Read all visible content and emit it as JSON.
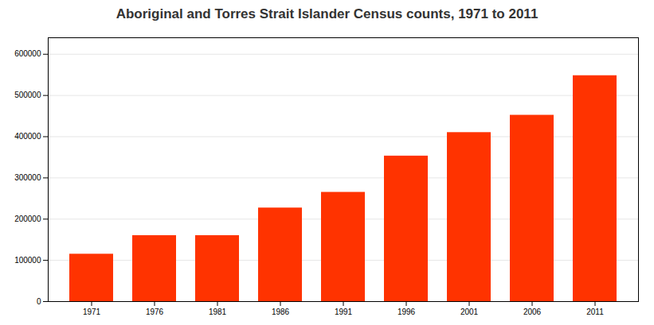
{
  "chart_data": {
    "type": "bar",
    "title": "Aboriginal and Torres Strait Islander Census counts, 1971 to 2011",
    "categories": [
      "1971",
      "1976",
      "1981",
      "1986",
      "1991",
      "1996",
      "2001",
      "2006",
      "2011"
    ],
    "values": [
      115000,
      160000,
      160000,
      227000,
      265000,
      353000,
      410000,
      452000,
      548000
    ],
    "color": "#FF3300",
    "ylim": [
      0,
      640000
    ],
    "yticks": [
      0,
      100000,
      200000,
      300000,
      400000,
      500000,
      600000
    ],
    "grid": true
  }
}
